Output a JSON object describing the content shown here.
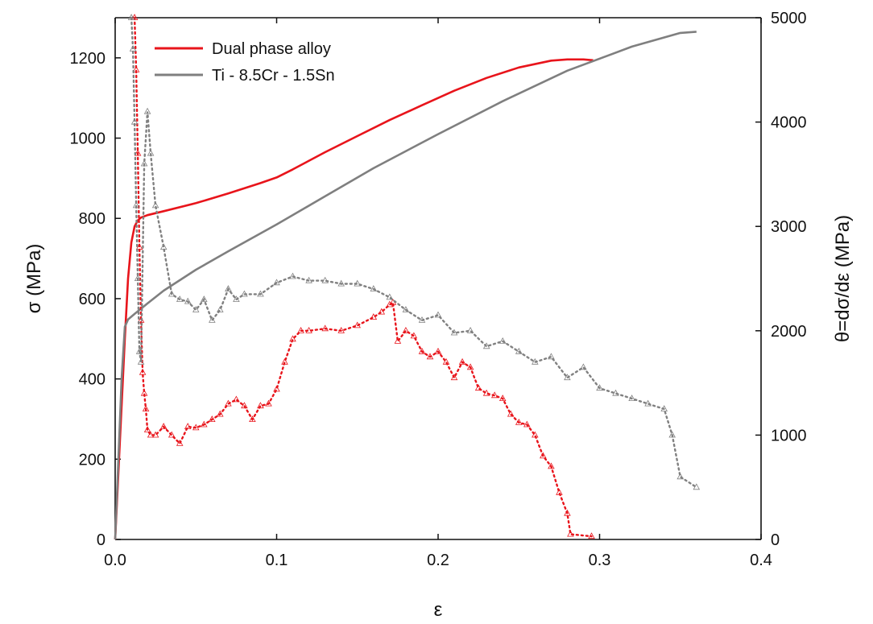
{
  "chart_data": {
    "type": "line",
    "xlabel": "ε",
    "ylabel_left": "σ (MPa)",
    "ylabel_right": "θ=dσ/dε (MPa)",
    "xlim": [
      0,
      0.4
    ],
    "ylim_left": [
      0,
      1300
    ],
    "ylim_right": [
      0,
      5000
    ],
    "x_ticks": [
      "0.0",
      "0.1",
      "0.2",
      "0.3",
      "0.4"
    ],
    "y_left_ticks": [
      "0",
      "200",
      "400",
      "600",
      "800",
      "1000",
      "1200"
    ],
    "y_right_ticks": [
      "0",
      "1000",
      "2000",
      "3000",
      "4000",
      "5000"
    ],
    "grid": false,
    "legend_position": "top-left",
    "series": [
      {
        "name": "Dual phase alloy",
        "axis": "left",
        "color": "#e8141b",
        "style": "solid",
        "x": [
          0.0,
          0.003,
          0.006,
          0.008,
          0.01,
          0.012,
          0.014,
          0.016,
          0.02,
          0.03,
          0.05,
          0.07,
          0.09,
          0.1,
          0.11,
          0.13,
          0.15,
          0.17,
          0.19,
          0.21,
          0.23,
          0.25,
          0.27,
          0.28,
          0.29,
          0.296
        ],
        "y": [
          0,
          250,
          500,
          650,
          740,
          780,
          795,
          802,
          808,
          818,
          838,
          862,
          888,
          902,
          922,
          965,
          1005,
          1045,
          1082,
          1118,
          1150,
          1176,
          1193,
          1196,
          1196,
          1194
        ]
      },
      {
        "name": "Ti - 8.5Cr - 1.5Sn",
        "axis": "left",
        "color": "#7f7f7f",
        "style": "solid",
        "x": [
          0.0,
          0.002,
          0.004,
          0.006,
          0.008,
          0.012,
          0.02,
          0.03,
          0.05,
          0.07,
          0.1,
          0.13,
          0.16,
          0.2,
          0.24,
          0.28,
          0.32,
          0.35,
          0.36
        ],
        "y": [
          0,
          200,
          400,
          530,
          548,
          562,
          588,
          620,
          672,
          718,
          785,
          855,
          925,
          1010,
          1092,
          1168,
          1228,
          1262,
          1265
        ]
      },
      {
        "axis": "right",
        "color": "#e8141b",
        "style": "dotted-triangles",
        "x": [
          0.012,
          0.013,
          0.014,
          0.015,
          0.016,
          0.017,
          0.018,
          0.019,
          0.02,
          0.022,
          0.025,
          0.03,
          0.035,
          0.04,
          0.045,
          0.05,
          0.055,
          0.06,
          0.065,
          0.07,
          0.075,
          0.08,
          0.085,
          0.09,
          0.095,
          0.1,
          0.105,
          0.11,
          0.115,
          0.12,
          0.13,
          0.14,
          0.15,
          0.16,
          0.165,
          0.17,
          0.172,
          0.175,
          0.18,
          0.185,
          0.19,
          0.195,
          0.2,
          0.205,
          0.21,
          0.215,
          0.22,
          0.225,
          0.23,
          0.235,
          0.24,
          0.245,
          0.25,
          0.255,
          0.26,
          0.265,
          0.27,
          0.275,
          0.28,
          0.282,
          0.295
        ],
        "y": [
          5000,
          4500,
          3700,
          2800,
          2100,
          1600,
          1400,
          1250,
          1050,
          1000,
          1000,
          1080,
          1000,
          920,
          1080,
          1070,
          1100,
          1150,
          1200,
          1300,
          1340,
          1280,
          1150,
          1280,
          1300,
          1440,
          1700,
          1920,
          2000,
          2000,
          2020,
          2000,
          2050,
          2130,
          2180,
          2250,
          2270,
          1900,
          2000,
          1950,
          1800,
          1750,
          1800,
          1700,
          1550,
          1700,
          1650,
          1450,
          1400,
          1380,
          1350,
          1200,
          1120,
          1100,
          1000,
          800,
          700,
          450,
          250,
          50,
          30
        ]
      },
      {
        "axis": "right",
        "color": "#808080",
        "style": "dotted-triangles",
        "x": [
          0.01,
          0.011,
          0.012,
          0.013,
          0.014,
          0.015,
          0.016,
          0.018,
          0.02,
          0.022,
          0.025,
          0.03,
          0.035,
          0.04,
          0.045,
          0.05,
          0.055,
          0.06,
          0.065,
          0.07,
          0.075,
          0.08,
          0.09,
          0.1,
          0.11,
          0.12,
          0.13,
          0.14,
          0.15,
          0.16,
          0.17,
          0.18,
          0.19,
          0.2,
          0.21,
          0.22,
          0.23,
          0.24,
          0.25,
          0.26,
          0.27,
          0.28,
          0.29,
          0.3,
          0.31,
          0.32,
          0.33,
          0.34,
          0.345,
          0.35,
          0.36
        ],
        "y": [
          5000,
          4700,
          4000,
          3200,
          2500,
          1800,
          1700,
          3600,
          4100,
          3700,
          3200,
          2800,
          2350,
          2300,
          2280,
          2200,
          2300,
          2100,
          2200,
          2400,
          2300,
          2350,
          2350,
          2460,
          2520,
          2480,
          2480,
          2450,
          2450,
          2400,
          2320,
          2200,
          2100,
          2150,
          1980,
          2000,
          1850,
          1900,
          1800,
          1700,
          1750,
          1550,
          1650,
          1450,
          1400,
          1350,
          1300,
          1250,
          1000,
          600,
          500
        ]
      }
    ]
  }
}
